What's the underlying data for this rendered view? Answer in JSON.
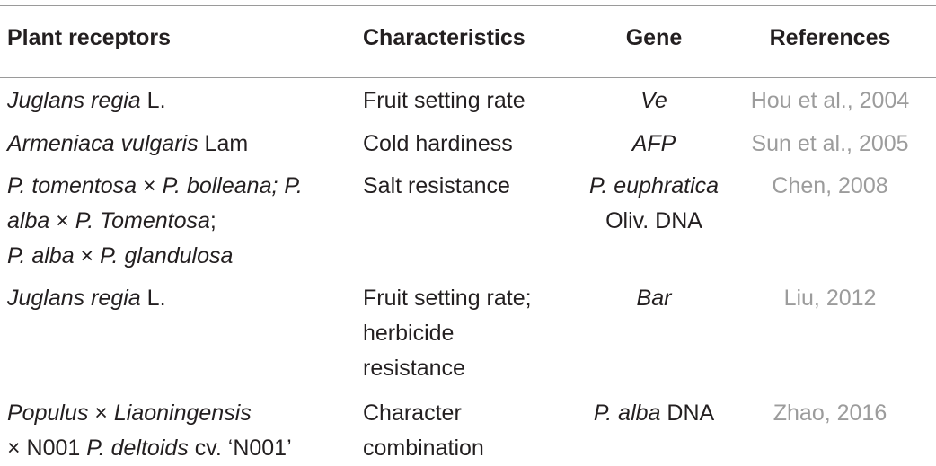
{
  "table": {
    "headers": [
      "Plant receptors",
      "Characteristics",
      "Gene",
      "References"
    ],
    "rows": [
      {
        "plant": [
          {
            "it": "Juglans regia",
            "rm": " L."
          }
        ],
        "characteristics": [
          "Fruit setting rate"
        ],
        "gene": [
          {
            "it": "Ve",
            "rm": ""
          }
        ],
        "reference": "Hou et al., 2004"
      },
      {
        "plant": [
          {
            "it": "Armeniaca vulgaris",
            "rm": " Lam"
          }
        ],
        "characteristics": [
          "Cold hardiness"
        ],
        "gene": [
          {
            "it": "AFP",
            "rm": ""
          }
        ],
        "reference": "Sun et al., 2005"
      },
      {
        "plant": [
          {
            "it": "P. tomentosa",
            "rm": " × ",
            "it2": "P. bolleana; P."
          },
          {
            "it": "alba",
            "rm": " × ",
            "it2": "P. Tomentosa",
            "rm2": ";"
          },
          {
            "it": "P. alba",
            "rm": " × ",
            "it2": "P. glandulosa"
          }
        ],
        "characteristics": [
          "Salt resistance"
        ],
        "gene": [
          {
            "it": "P. euphratica",
            "rm": ""
          },
          {
            "it": "",
            "rm": "Oliv. DNA"
          }
        ],
        "reference": "Chen, 2008"
      },
      {
        "plant": [
          {
            "it": "Juglans regia",
            "rm": " L."
          }
        ],
        "characteristics": [
          "Fruit setting rate;",
          "herbicide",
          "resistance"
        ],
        "gene": [
          {
            "it": "Bar",
            "rm": ""
          }
        ],
        "reference": "Liu, 2012"
      },
      {
        "plant": [
          {
            "it": "Populus",
            "rm": " × ",
            "it2": "Liaoningensis"
          },
          {
            "it": "",
            "rm": "× N001 ",
            "it2": "P. deltoids",
            "rm2": " cv. ‘N001’"
          }
        ],
        "characteristics": [
          "Character",
          "combination"
        ],
        "gene": [
          {
            "it": "P. alba",
            "rm": " DNA"
          }
        ],
        "reference": "Zhao, 2016"
      }
    ]
  }
}
